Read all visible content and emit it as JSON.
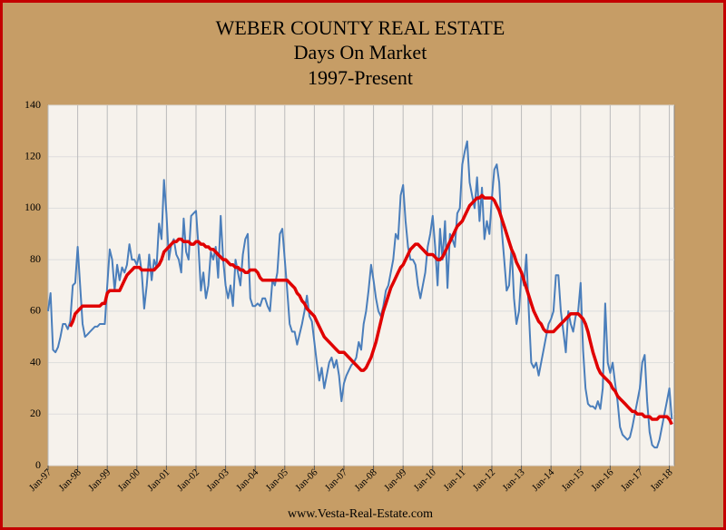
{
  "chart_data": {
    "type": "line",
    "title": "WEBER COUNTY REAL ESTATE",
    "subtitle": [
      "Days On Market",
      "1997-Present"
    ],
    "source": "www.Vesta-Real-Estate.com",
    "categories": [
      "Jan-97",
      null,
      null,
      null,
      null,
      null,
      null,
      null,
      null,
      null,
      null,
      null,
      "Jan-98",
      null,
      null,
      null,
      null,
      null,
      null,
      null,
      null,
      null,
      null,
      null,
      "Jan-99",
      null,
      null,
      null,
      null,
      null,
      null,
      null,
      null,
      null,
      null,
      null,
      "Jan-00",
      null,
      null,
      null,
      null,
      null,
      null,
      null,
      null,
      null,
      null,
      null,
      "Jan-01",
      null,
      null,
      null,
      null,
      null,
      null,
      null,
      null,
      null,
      null,
      null,
      "Jan-02",
      null,
      null,
      null,
      null,
      null,
      null,
      null,
      null,
      null,
      null,
      null,
      "Jan-03",
      null,
      null,
      null,
      null,
      null,
      null,
      null,
      null,
      null,
      null,
      null,
      "Jan-04",
      null,
      null,
      null,
      null,
      null,
      null,
      null,
      null,
      null,
      null,
      null,
      "Jan-05",
      null,
      null,
      null,
      null,
      null,
      null,
      null,
      null,
      null,
      null,
      null,
      "Jan-06",
      null,
      null,
      null,
      null,
      null,
      null,
      null,
      null,
      null,
      null,
      null,
      "Jan-07",
      null,
      null,
      null,
      null,
      null,
      null,
      null,
      null,
      null,
      null,
      null,
      "Jan-08",
      null,
      null,
      null,
      null,
      null,
      null,
      null,
      null,
      null,
      null,
      null,
      "Jan-09",
      null,
      null,
      null,
      null,
      null,
      null,
      null,
      null,
      null,
      null,
      null,
      "Jan-10",
      null,
      null,
      null,
      null,
      null,
      null,
      null,
      null,
      null,
      null,
      null,
      "Jan-11",
      null,
      null,
      null,
      null,
      null,
      null,
      null,
      null,
      null,
      null,
      null,
      "Jan-12",
      null,
      null,
      null,
      null,
      null,
      null,
      null,
      null,
      null,
      null,
      null,
      "Jan-13",
      null,
      null,
      null,
      null,
      null,
      null,
      null,
      null,
      null,
      null,
      null,
      "Jan-14",
      null,
      null,
      null,
      null,
      null,
      null,
      null,
      null,
      null,
      null,
      null,
      "Jan-15",
      null,
      null,
      null,
      null,
      null,
      null,
      null,
      null,
      null,
      null,
      null,
      "Jan-16",
      null,
      null,
      null,
      null,
      null,
      null,
      null,
      null,
      null,
      null,
      null,
      "Jan-17",
      null,
      null,
      null,
      null,
      null,
      null,
      null,
      null,
      null,
      null,
      null,
      "Jan-18",
      null
    ],
    "series": [
      {
        "color": "#4a7ebb",
        "width": 2,
        "values": [
          60,
          67,
          45,
          44,
          46,
          50,
          55,
          55,
          53,
          56,
          70,
          71,
          85,
          70,
          55,
          50,
          51,
          52,
          53,
          54,
          54,
          55,
          55,
          55,
          70,
          84,
          80,
          68,
          78,
          72,
          77,
          75,
          78,
          86,
          80,
          80,
          78,
          82,
          75,
          61,
          70,
          82,
          72,
          80,
          77,
          94,
          88,
          111,
          98,
          80,
          86,
          88,
          82,
          80,
          75,
          96,
          83,
          80,
          97,
          98,
          99,
          85,
          68,
          75,
          65,
          70,
          83,
          80,
          85,
          73,
          97,
          80,
          70,
          65,
          70,
          62,
          80,
          75,
          70,
          82,
          88,
          90,
          65,
          62,
          62,
          63,
          62,
          65,
          65,
          62,
          60,
          72,
          70,
          75,
          90,
          92,
          80,
          68,
          55,
          52,
          52,
          47,
          51,
          55,
          60,
          66,
          58,
          56,
          48,
          40,
          33,
          38,
          30,
          35,
          40,
          42,
          38,
          41,
          35,
          25,
          32,
          35,
          37,
          39,
          40,
          42,
          48,
          45,
          55,
          60,
          68,
          78,
          72,
          65,
          60,
          58,
          62,
          68,
          70,
          75,
          80,
          90,
          88,
          105,
          109,
          95,
          85,
          80,
          80,
          78,
          70,
          65,
          70,
          75,
          85,
          90,
          97,
          85,
          70,
          92,
          80,
          95,
          69,
          90,
          88,
          85,
          98,
          100,
          117,
          122,
          126,
          110,
          105,
          100,
          112,
          95,
          108,
          88,
          95,
          90,
          104,
          115,
          117,
          110,
          92,
          80,
          68,
          70,
          85,
          65,
          55,
          60,
          75,
          70,
          82,
          60,
          40,
          38,
          40,
          35,
          40,
          45,
          50,
          55,
          57,
          60,
          74,
          74,
          60,
          52,
          44,
          60,
          55,
          52,
          58,
          60,
          71,
          45,
          30,
          24,
          23,
          23,
          22,
          25,
          22,
          30,
          63,
          40,
          36,
          40,
          32,
          25,
          15,
          12,
          11,
          10,
          11,
          15,
          20,
          25,
          30,
          40,
          43,
          25,
          13,
          8,
          7,
          7,
          10,
          15,
          20,
          25,
          30,
          18
        ]
      },
      {
        "color": "#e00000",
        "width": 3.5,
        "values": [
          null,
          null,
          null,
          null,
          null,
          null,
          null,
          null,
          null,
          54,
          56,
          59,
          60,
          61,
          62,
          62,
          62,
          62,
          62,
          62,
          62,
          62,
          63,
          63,
          67,
          68,
          68,
          68,
          68,
          68,
          70,
          72,
          74,
          75,
          76,
          77,
          77,
          77,
          76,
          76,
          76,
          76,
          76,
          76,
          77,
          78,
          80,
          83,
          84,
          85,
          86,
          87,
          87,
          88,
          88,
          87,
          87,
          87,
          86,
          86,
          87,
          87,
          86,
          86,
          85,
          85,
          84,
          84,
          83,
          82,
          81,
          80,
          80,
          79,
          78,
          78,
          77,
          77,
          76,
          76,
          75,
          75,
          76,
          76,
          76,
          75,
          73,
          72,
          72,
          72,
          72,
          72,
          72,
          72,
          72,
          72,
          72,
          72,
          71,
          70,
          69,
          67,
          66,
          64,
          63,
          61,
          60,
          59,
          58,
          56,
          54,
          52,
          50,
          49,
          48,
          47,
          46,
          45,
          44,
          44,
          44,
          43,
          42,
          41,
          40,
          39,
          38,
          37,
          37,
          38,
          40,
          42,
          45,
          48,
          52,
          56,
          60,
          63,
          66,
          69,
          71,
          73,
          75,
          77,
          78,
          80,
          82,
          84,
          85,
          86,
          86,
          85,
          84,
          83,
          82,
          82,
          82,
          81,
          80,
          80,
          81,
          83,
          85,
          87,
          89,
          91,
          93,
          94,
          95,
          97,
          99,
          101,
          102,
          103,
          104,
          104,
          105,
          104,
          104,
          104,
          104,
          103,
          101,
          99,
          96,
          93,
          90,
          87,
          84,
          82,
          79,
          77,
          75,
          72,
          69,
          66,
          63,
          60,
          58,
          56,
          55,
          53,
          52,
          52,
          52,
          52,
          53,
          54,
          55,
          56,
          57,
          58,
          59,
          59,
          59,
          59,
          58,
          57,
          55,
          52,
          48,
          44,
          41,
          38,
          36,
          35,
          34,
          33,
          32,
          30,
          29,
          27,
          26,
          25,
          24,
          23,
          22,
          21,
          21,
          20,
          20,
          20,
          19,
          19,
          19,
          18,
          18,
          18,
          19,
          19,
          19,
          19,
          18,
          16
        ]
      }
    ],
    "ylim": [
      0,
      140
    ],
    "yticks": [
      0,
      20,
      40,
      60,
      80,
      100,
      120,
      140
    ],
    "grid": true
  }
}
